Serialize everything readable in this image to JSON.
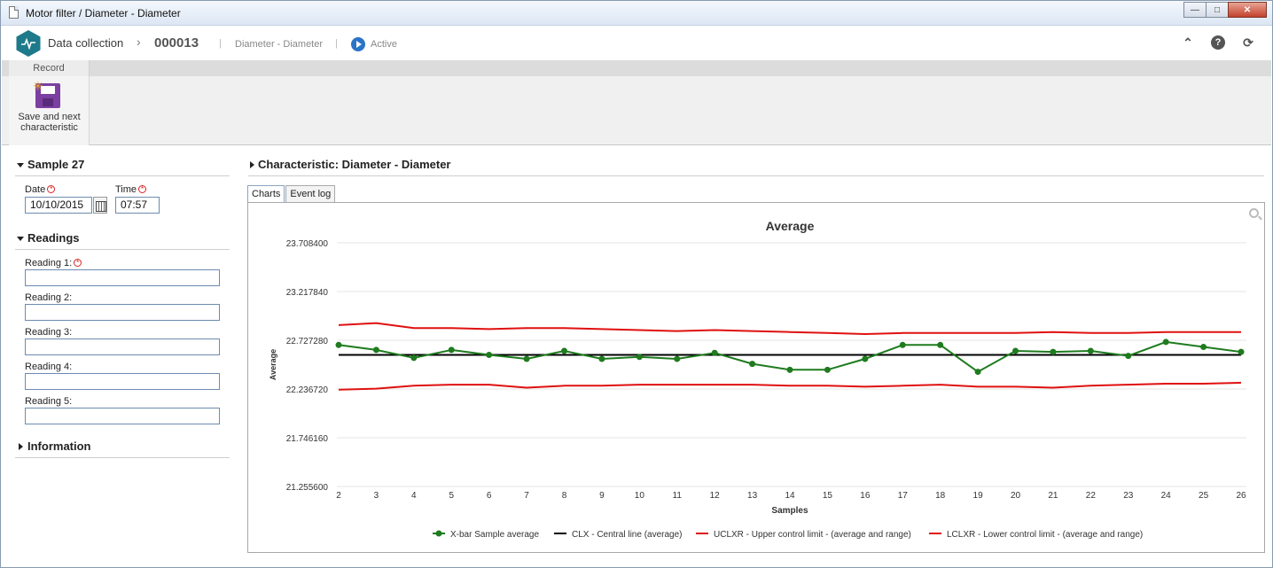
{
  "window": {
    "title": "Motor filter / Diameter - Diameter"
  },
  "header": {
    "module": "Data collection",
    "record_id": "000013",
    "subtitle": "Diameter - Diameter",
    "status": "Active",
    "separator": "|"
  },
  "ribbon": {
    "tab": "Record",
    "save_label_line1": "Save and next",
    "save_label_line2": "characteristic"
  },
  "sample": {
    "title": "Sample 27",
    "date_label": "Date",
    "date_value": "10/10/2015",
    "time_label": "Time",
    "time_value": "07:57"
  },
  "readings": {
    "title": "Readings",
    "items": [
      {
        "label": "Reading 1:",
        "value": "",
        "required": true
      },
      {
        "label": "Reading 2:",
        "value": ""
      },
      {
        "label": "Reading 3:",
        "value": ""
      },
      {
        "label": "Reading 4:",
        "value": ""
      },
      {
        "label": "Reading 5:",
        "value": ""
      }
    ]
  },
  "information": {
    "title": "Information"
  },
  "characteristic": {
    "title": "Characteristic: Diameter - Diameter"
  },
  "tabs": [
    "Charts",
    "Event log"
  ],
  "colors": {
    "xbar": "#1e7b1e",
    "clx": "#000000",
    "ucl": "#e01010",
    "lcl": "#e01010",
    "accent": "#1d7a8a"
  },
  "chart_data": {
    "type": "line",
    "title": "Average",
    "xlabel": "Samples",
    "ylabel": "Average",
    "ylim": [
      21.2556,
      23.7084
    ],
    "yticks": [
      "23.708400",
      "23.217840",
      "22.727280",
      "22.236720",
      "21.746160",
      "21.255600"
    ],
    "x": [
      2,
      3,
      4,
      5,
      6,
      7,
      8,
      9,
      10,
      11,
      12,
      13,
      14,
      15,
      16,
      17,
      18,
      19,
      20,
      21,
      22,
      23,
      24,
      25,
      26
    ],
    "grid": true,
    "legend_position": "bottom",
    "series": [
      {
        "name": "X-bar Sample average",
        "color": "#1e7b1e",
        "markers": true,
        "values": [
          22.68,
          22.63,
          22.55,
          22.63,
          22.58,
          22.54,
          22.62,
          22.54,
          22.56,
          22.54,
          22.6,
          22.49,
          22.43,
          22.43,
          22.54,
          22.68,
          22.68,
          22.41,
          22.62,
          22.61,
          22.62,
          22.57,
          22.71,
          22.66,
          22.61
        ]
      },
      {
        "name": "CLX - Central line (average)",
        "color": "#000000",
        "markers": false,
        "values": [
          22.58,
          22.58,
          22.58,
          22.58,
          22.58,
          22.58,
          22.58,
          22.58,
          22.58,
          22.58,
          22.58,
          22.58,
          22.58,
          22.58,
          22.58,
          22.58,
          22.58,
          22.58,
          22.58,
          22.58,
          22.58,
          22.58,
          22.58,
          22.58,
          22.58
        ]
      },
      {
        "name": "UCLXR - Upper control limit - (average and range)",
        "color": "#e01010",
        "markers": false,
        "values": [
          22.88,
          22.9,
          22.85,
          22.85,
          22.84,
          22.85,
          22.85,
          22.84,
          22.83,
          22.82,
          22.83,
          22.82,
          22.81,
          22.8,
          22.79,
          22.8,
          22.8,
          22.8,
          22.8,
          22.81,
          22.8,
          22.8,
          22.81,
          22.81,
          22.81
        ]
      },
      {
        "name": "LCLXR - Lower control limit - (average and range)",
        "color": "#e01010",
        "markers": false,
        "values": [
          22.23,
          22.24,
          22.27,
          22.28,
          22.28,
          22.25,
          22.27,
          22.27,
          22.28,
          22.28,
          22.28,
          22.28,
          22.27,
          22.27,
          22.26,
          22.27,
          22.28,
          22.26,
          22.26,
          22.25,
          22.27,
          22.28,
          22.29,
          22.29,
          22.3
        ]
      }
    ]
  }
}
